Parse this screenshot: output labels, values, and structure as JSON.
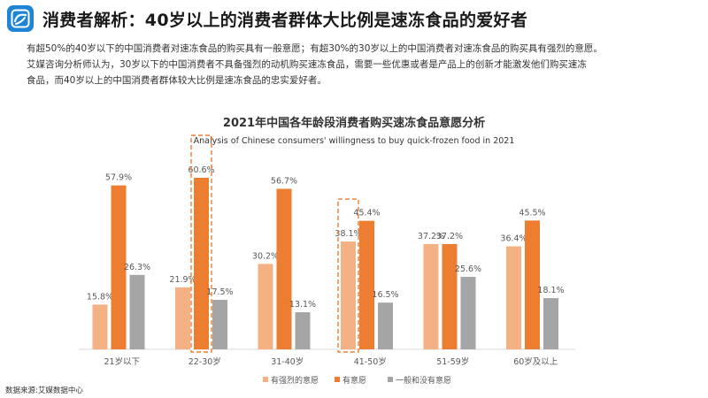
{
  "header": {
    "logo_icon": "chart-logo-icon",
    "title": "消费者解析：40岁以上的消费者群体大比例是速冻食品的爱好者"
  },
  "description": [
    "有超50%的40岁以下的中国消费者对速冻食品的购买具有一般意愿；有超30%的30岁以上的中国消费者对速冻食品的购买具有强烈的意愿。",
    "艾媒咨询分析师认为，30岁以下的中国消费者不具备强烈的动机购买速冻食品，需要一些优惠或者是产品上的创新才能激发他们购买速冻",
    "食品，而40岁以上的中国消费者群体较大比例是速冻食品的忠实爱好者。"
  ],
  "source": "数据来源:艾媒数据中心",
  "colors": {
    "strong": "#f4b183",
    "willing": "#ed7d31",
    "neutral": "#a5a5a5",
    "highlight": "#ed7d31",
    "axis": "#d9d9d9",
    "logo": "#1f84d6"
  },
  "chart_data": {
    "type": "bar",
    "title": "2021年中国各年龄段消费者购买速冻食品意愿分析",
    "subtitle": "Analysis of Chinese consumers' willingness to buy quick-frozen food in 2021",
    "categories": [
      "21岁以下",
      "22-30岁",
      "31-40岁",
      "41-50岁",
      "51-59岁",
      "60岁及以上"
    ],
    "series": [
      {
        "name": "有强烈的意愿",
        "values": [
          15.8,
          21.9,
          30.2,
          38.1,
          37.2,
          36.4
        ],
        "labels": [
          "15.8%",
          "21.9%",
          "30.2%",
          "38.1%",
          "37.2%",
          "36.4%"
        ]
      },
      {
        "name": "有意愿",
        "values": [
          57.9,
          60.6,
          56.7,
          45.4,
          37.2,
          45.5
        ],
        "labels": [
          "57.9%",
          "60.6%",
          "56.7%",
          "45.4%",
          "37.2%",
          "45.5%"
        ]
      },
      {
        "name": "一般和没有意愿",
        "values": [
          26.3,
          17.5,
          13.1,
          16.5,
          25.6,
          18.1
        ],
        "labels": [
          "26.3%",
          "17.5%",
          "13.1%",
          "16.5%",
          "25.6%",
          "18.1%"
        ]
      }
    ],
    "ylim": [
      0,
      60.6
    ],
    "highlights": [
      {
        "category": "22-30岁",
        "series": "有意愿"
      },
      {
        "category": "41-50岁",
        "series": "有强烈的意愿"
      }
    ],
    "legend_position": "bottom-center",
    "grid": false
  }
}
